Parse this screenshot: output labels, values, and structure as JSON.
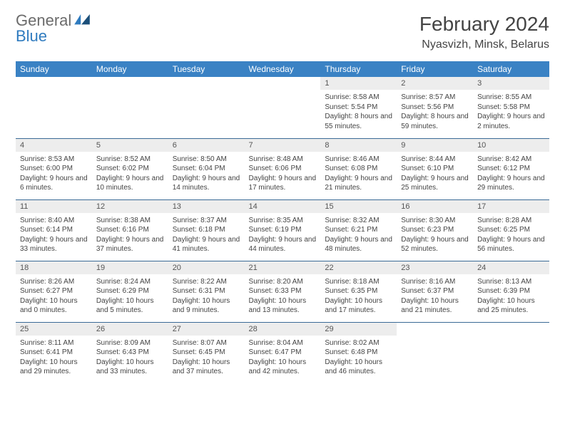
{
  "logo": {
    "word1": "General",
    "word2": "Blue"
  },
  "title": "February 2024",
  "location": "Nyasvizh, Minsk, Belarus",
  "colors": {
    "header_bg": "#3a82c4",
    "header_text": "#ffffff",
    "daynum_bg": "#ededed",
    "rule": "#3a6a96",
    "text": "#444444",
    "logo_gray": "#6b6b6b",
    "logo_blue": "#2f7bbf"
  },
  "day_labels": [
    "Sunday",
    "Monday",
    "Tuesday",
    "Wednesday",
    "Thursday",
    "Friday",
    "Saturday"
  ],
  "weeks": [
    [
      null,
      null,
      null,
      null,
      {
        "n": "1",
        "sr": "8:58 AM",
        "ss": "5:54 PM",
        "dl": "8 hours and 55 minutes."
      },
      {
        "n": "2",
        "sr": "8:57 AM",
        "ss": "5:56 PM",
        "dl": "8 hours and 59 minutes."
      },
      {
        "n": "3",
        "sr": "8:55 AM",
        "ss": "5:58 PM",
        "dl": "9 hours and 2 minutes."
      }
    ],
    [
      {
        "n": "4",
        "sr": "8:53 AM",
        "ss": "6:00 PM",
        "dl": "9 hours and 6 minutes."
      },
      {
        "n": "5",
        "sr": "8:52 AM",
        "ss": "6:02 PM",
        "dl": "9 hours and 10 minutes."
      },
      {
        "n": "6",
        "sr": "8:50 AM",
        "ss": "6:04 PM",
        "dl": "9 hours and 14 minutes."
      },
      {
        "n": "7",
        "sr": "8:48 AM",
        "ss": "6:06 PM",
        "dl": "9 hours and 17 minutes."
      },
      {
        "n": "8",
        "sr": "8:46 AM",
        "ss": "6:08 PM",
        "dl": "9 hours and 21 minutes."
      },
      {
        "n": "9",
        "sr": "8:44 AM",
        "ss": "6:10 PM",
        "dl": "9 hours and 25 minutes."
      },
      {
        "n": "10",
        "sr": "8:42 AM",
        "ss": "6:12 PM",
        "dl": "9 hours and 29 minutes."
      }
    ],
    [
      {
        "n": "11",
        "sr": "8:40 AM",
        "ss": "6:14 PM",
        "dl": "9 hours and 33 minutes."
      },
      {
        "n": "12",
        "sr": "8:38 AM",
        "ss": "6:16 PM",
        "dl": "9 hours and 37 minutes."
      },
      {
        "n": "13",
        "sr": "8:37 AM",
        "ss": "6:18 PM",
        "dl": "9 hours and 41 minutes."
      },
      {
        "n": "14",
        "sr": "8:35 AM",
        "ss": "6:19 PM",
        "dl": "9 hours and 44 minutes."
      },
      {
        "n": "15",
        "sr": "8:32 AM",
        "ss": "6:21 PM",
        "dl": "9 hours and 48 minutes."
      },
      {
        "n": "16",
        "sr": "8:30 AM",
        "ss": "6:23 PM",
        "dl": "9 hours and 52 minutes."
      },
      {
        "n": "17",
        "sr": "8:28 AM",
        "ss": "6:25 PM",
        "dl": "9 hours and 56 minutes."
      }
    ],
    [
      {
        "n": "18",
        "sr": "8:26 AM",
        "ss": "6:27 PM",
        "dl": "10 hours and 0 minutes."
      },
      {
        "n": "19",
        "sr": "8:24 AM",
        "ss": "6:29 PM",
        "dl": "10 hours and 5 minutes."
      },
      {
        "n": "20",
        "sr": "8:22 AM",
        "ss": "6:31 PM",
        "dl": "10 hours and 9 minutes."
      },
      {
        "n": "21",
        "sr": "8:20 AM",
        "ss": "6:33 PM",
        "dl": "10 hours and 13 minutes."
      },
      {
        "n": "22",
        "sr": "8:18 AM",
        "ss": "6:35 PM",
        "dl": "10 hours and 17 minutes."
      },
      {
        "n": "23",
        "sr": "8:16 AM",
        "ss": "6:37 PM",
        "dl": "10 hours and 21 minutes."
      },
      {
        "n": "24",
        "sr": "8:13 AM",
        "ss": "6:39 PM",
        "dl": "10 hours and 25 minutes."
      }
    ],
    [
      {
        "n": "25",
        "sr": "8:11 AM",
        "ss": "6:41 PM",
        "dl": "10 hours and 29 minutes."
      },
      {
        "n": "26",
        "sr": "8:09 AM",
        "ss": "6:43 PM",
        "dl": "10 hours and 33 minutes."
      },
      {
        "n": "27",
        "sr": "8:07 AM",
        "ss": "6:45 PM",
        "dl": "10 hours and 37 minutes."
      },
      {
        "n": "28",
        "sr": "8:04 AM",
        "ss": "6:47 PM",
        "dl": "10 hours and 42 minutes."
      },
      {
        "n": "29",
        "sr": "8:02 AM",
        "ss": "6:48 PM",
        "dl": "10 hours and 46 minutes."
      },
      null,
      null
    ]
  ],
  "labels": {
    "sunrise": "Sunrise:",
    "sunset": "Sunset:",
    "daylight": "Daylight:"
  }
}
